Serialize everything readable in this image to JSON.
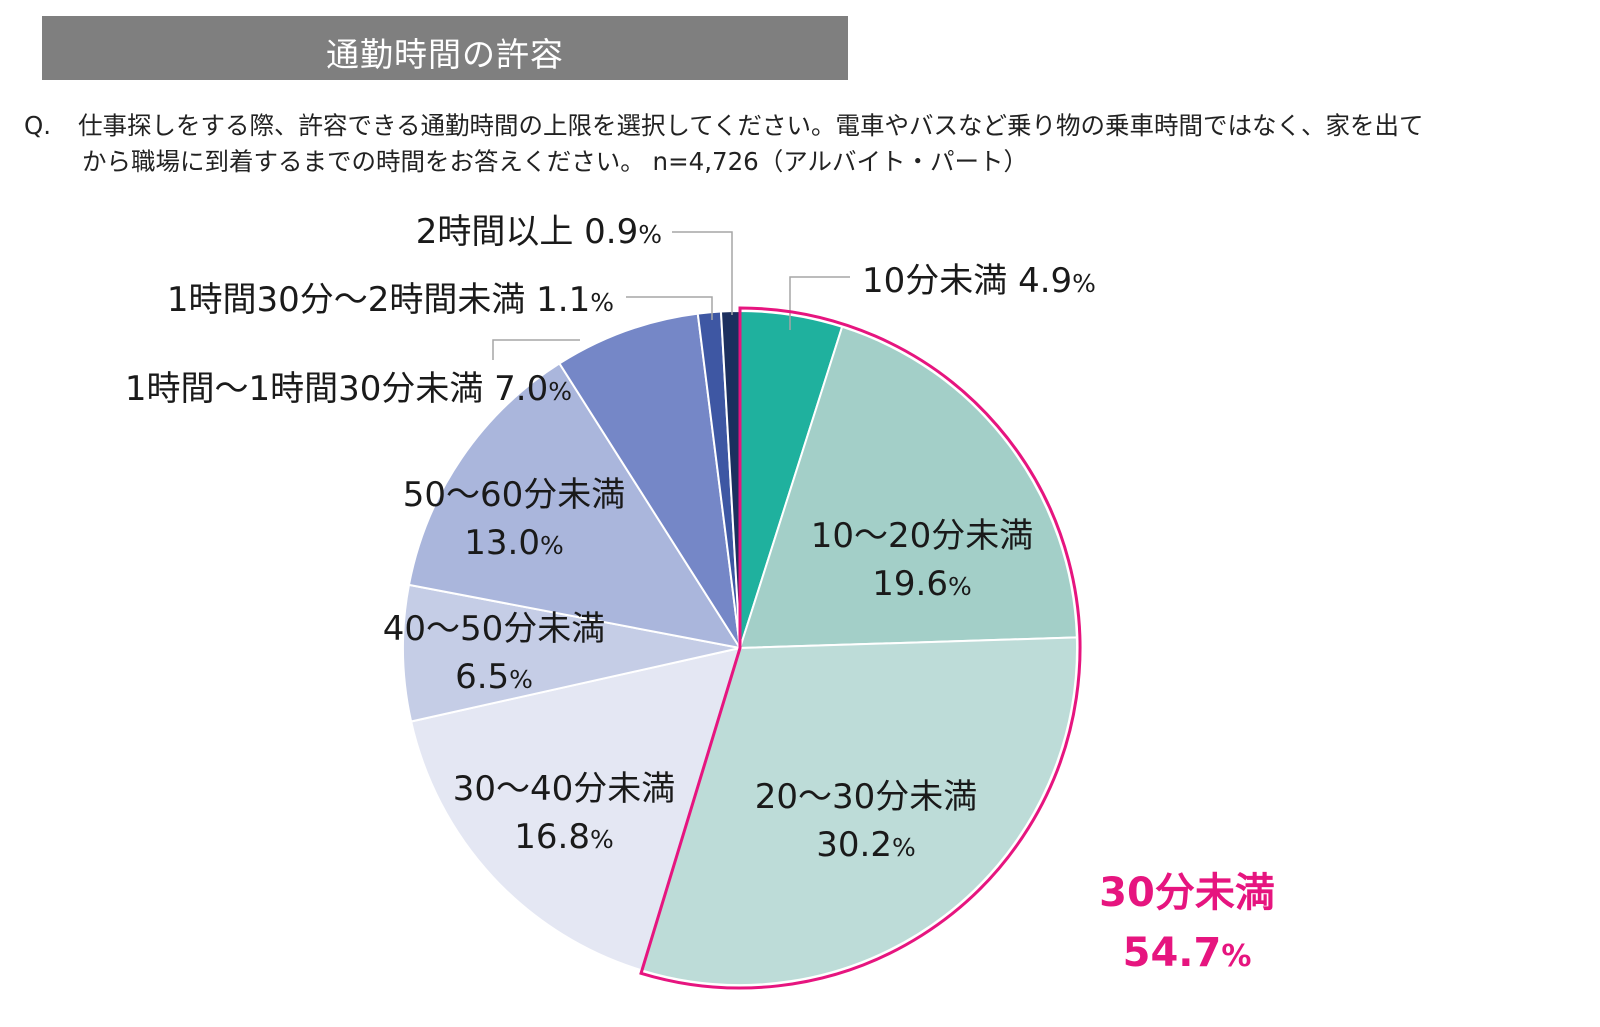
{
  "header": {
    "title": "通勤時間の許容",
    "question_prefix": "Q.",
    "question_line1": "仕事探しをする際、許容できる通勤時間の上限を選択してください。電車やバスなど乗り物の乗車時間ではなく、家を出て",
    "question_line2": "から職場に到着するまでの時間をお答えください。 n=4,726（アルバイト・パート）"
  },
  "chart_data": {
    "type": "pie",
    "title": "通勤時間の許容",
    "unit": "%",
    "categories": [
      "10分未満",
      "10～20分未満",
      "20～30分未満",
      "30～40分未満",
      "40～50分未満",
      "50～60分未満",
      "1時間～1時間30分未満",
      "1時間30分～2時間未満",
      "2時間以上"
    ],
    "values": [
      4.9,
      19.6,
      30.2,
      16.8,
      6.5,
      13.0,
      7.0,
      1.1,
      0.9
    ],
    "value_labels": [
      "4.9",
      "19.6",
      "30.2",
      "16.8",
      "6.5",
      "13.0",
      "7.0",
      "1.1",
      "0.9"
    ],
    "colors": [
      "#1fb19e",
      "#a3cfc8",
      "#bddcd8",
      "#e4e7f3",
      "#c5cde6",
      "#aab6dc",
      "#7587c7",
      "#3e57a3",
      "#1c2f5e"
    ],
    "highlight": {
      "label": "30分未満",
      "value": "54.7",
      "color": "#e6157f",
      "slices": [
        "10分未満",
        "10～20分未満",
        "20～30分未満"
      ]
    }
  }
}
